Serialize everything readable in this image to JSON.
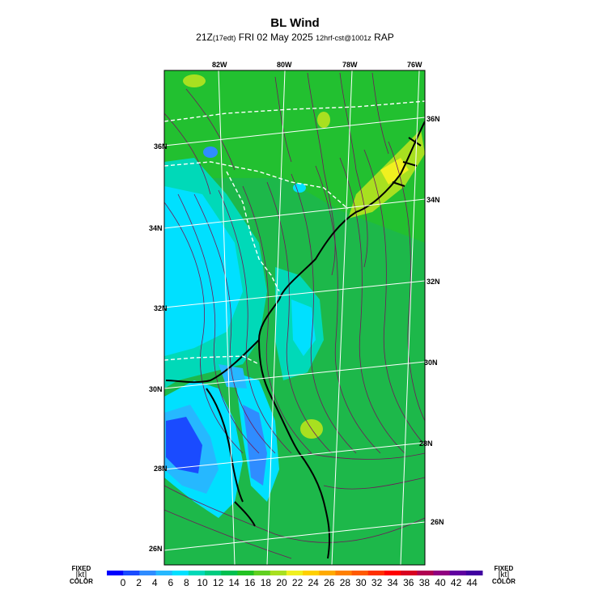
{
  "title": "BL Wind",
  "subtitle": {
    "hour": "21Z",
    "local": "(17edt)",
    "date": "FRI 02 May 2025",
    "run": "12hrf-cst@1001z",
    "model": "RAP"
  },
  "lon_labels": [
    "82W",
    "80W",
    "78W",
    "76W"
  ],
  "lat_labels_left": [
    "36N",
    "34N",
    "32N",
    "30N",
    "28N",
    "26N"
  ],
  "lat_labels_right": [
    "36N",
    "34N",
    "32N",
    "30N",
    "28N",
    "26N"
  ],
  "colorbar": {
    "left_label": [
      "FIXED",
      "[kt]",
      "COLOR"
    ],
    "right_label": [
      "FIXED",
      "[kt]",
      "COLOR"
    ],
    "ticks": [
      "0",
      "2",
      "4",
      "6",
      "8",
      "10",
      "12",
      "14",
      "16",
      "18",
      "20",
      "22",
      "24",
      "26",
      "28",
      "30",
      "32",
      "34",
      "36",
      "38",
      "40",
      "42",
      "44"
    ],
    "colors": [
      "#0000ff",
      "#1a4bff",
      "#2f8cff",
      "#26b8ff",
      "#00e0ff",
      "#00d9b8",
      "#00cc80",
      "#00c050",
      "#22c222",
      "#60d020",
      "#a8e020",
      "#f0f020",
      "#ffd000",
      "#ffaa00",
      "#ff8000",
      "#ff5a00",
      "#ff3000",
      "#ff0000",
      "#d80020",
      "#b00050",
      "#900080",
      "#6000a0",
      "#4000a0"
    ]
  },
  "colors": {
    "land": "#000000",
    "state_border": "#ffffff",
    "grid": "#ffffff",
    "streamline": "#6e1a5a"
  }
}
